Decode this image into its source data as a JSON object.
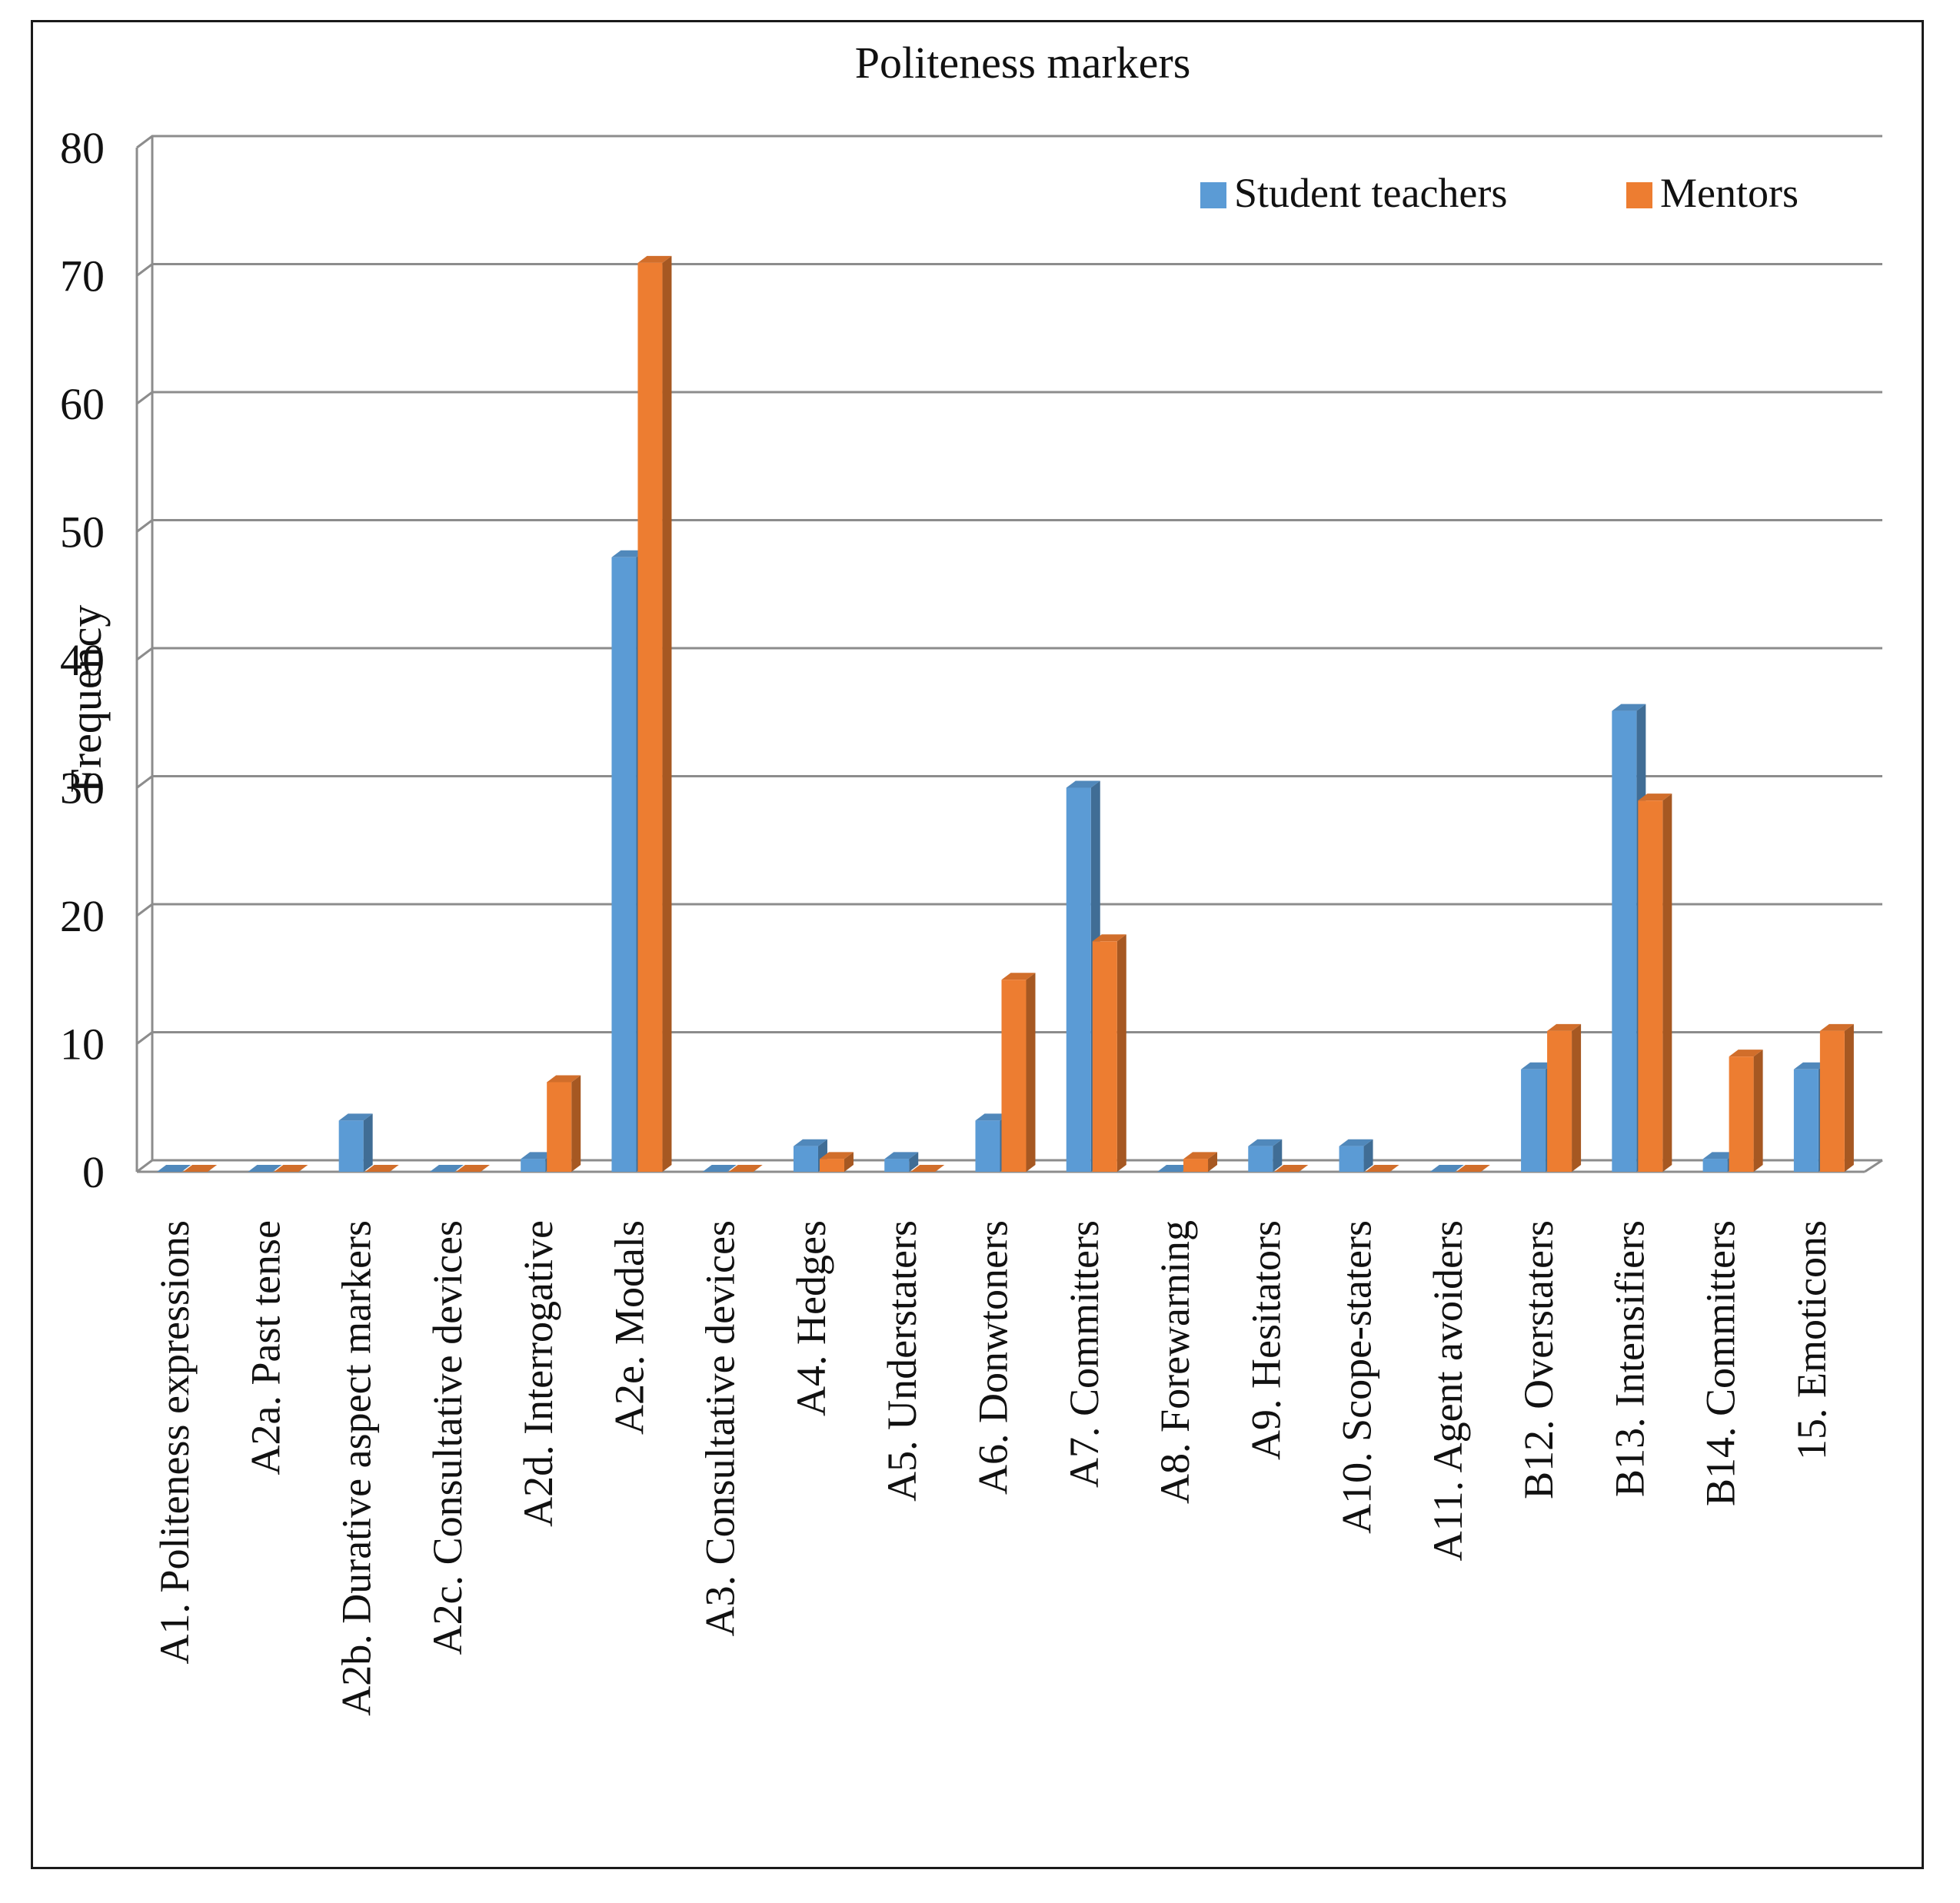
{
  "chart_data": {
    "type": "bar",
    "title": "Politeness markers",
    "xlabel": "",
    "ylabel": "Frequency",
    "ylim": [
      0,
      80
    ],
    "yticks": [
      0,
      10,
      20,
      30,
      40,
      50,
      60,
      70,
      80
    ],
    "grid": true,
    "legend_position": "top-right",
    "categories": [
      "A1. Politeness expressions",
      "A2a. Past tense",
      "A2b. Durative aspect markers",
      "A2c. Consultative devices",
      "A2d. Interrogative",
      "A2e. Modals",
      "A3. Consultative devices",
      "A4. Hedges",
      "A5. Understaters",
      "A6. Donwtoners",
      "A7. Committers",
      "A8. Forewarning",
      "A9. Hesitators",
      "A10. Scope-staters",
      "A11. Agent avoiders",
      "B12. Overstaters",
      "B13. Intensifiers",
      "B14. Committers",
      "15. Emoticons"
    ],
    "series": [
      {
        "name": "Student teachers",
        "color": "#5b9bd5",
        "values": [
          0,
          0,
          4,
          0,
          1,
          48,
          0,
          2,
          1,
          4,
          30,
          0,
          2,
          2,
          0,
          8,
          36,
          1,
          8
        ]
      },
      {
        "name": "Mentors",
        "color": "#ed7d31",
        "values": [
          0,
          0,
          0,
          0,
          7,
          71,
          0,
          1,
          0,
          15,
          18,
          1,
          0,
          0,
          0,
          11,
          29,
          9,
          11
        ]
      }
    ]
  }
}
